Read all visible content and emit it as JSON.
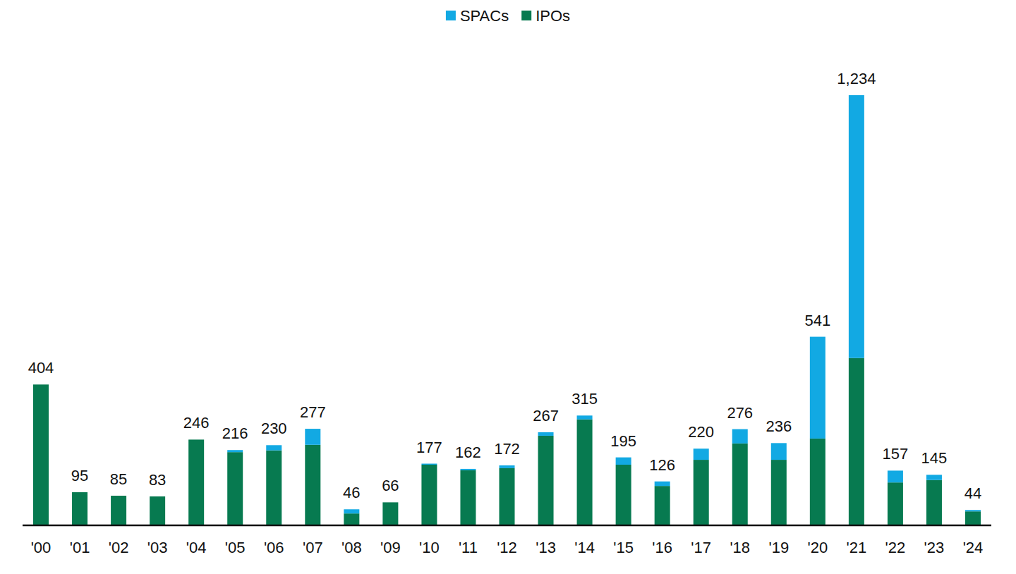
{
  "chart_data": {
    "type": "bar",
    "stacked": true,
    "tick_labels": "x",
    "grid": false,
    "legend": "top",
    "categories": [
      "'00",
      "'01",
      "'02",
      "'03",
      "'04",
      "'05",
      "'06",
      "'07",
      "'08",
      "'09",
      "'10",
      "'11",
      "'12",
      "'13",
      "'14",
      "'15",
      "'16",
      "'17",
      "'18",
      "'19",
      "'20",
      "'21",
      "'22",
      "'23",
      "'24"
    ],
    "series": [
      {
        "name": "SPACs",
        "color": "#12a9e3",
        "values": [
          0,
          0,
          0,
          0,
          0,
          6,
          15,
          46,
          12,
          0,
          3,
          4,
          8,
          10,
          11,
          21,
          13,
          32,
          41,
          48,
          292,
          754,
          34,
          15,
          4
        ]
      },
      {
        "name": "IPOs",
        "color": "#077a50",
        "values": [
          404,
          95,
          85,
          83,
          246,
          210,
          215,
          231,
          34,
          66,
          174,
          158,
          164,
          257,
          304,
          174,
          113,
          188,
          235,
          188,
          249,
          480,
          123,
          130,
          40
        ]
      }
    ],
    "totals": [
      404,
      95,
      85,
      83,
      246,
      216,
      230,
      277,
      46,
      66,
      177,
      162,
      172,
      267,
      315,
      195,
      126,
      220,
      276,
      236,
      541,
      1234,
      157,
      145,
      44
    ],
    "ylim": [
      0,
      1234
    ]
  }
}
